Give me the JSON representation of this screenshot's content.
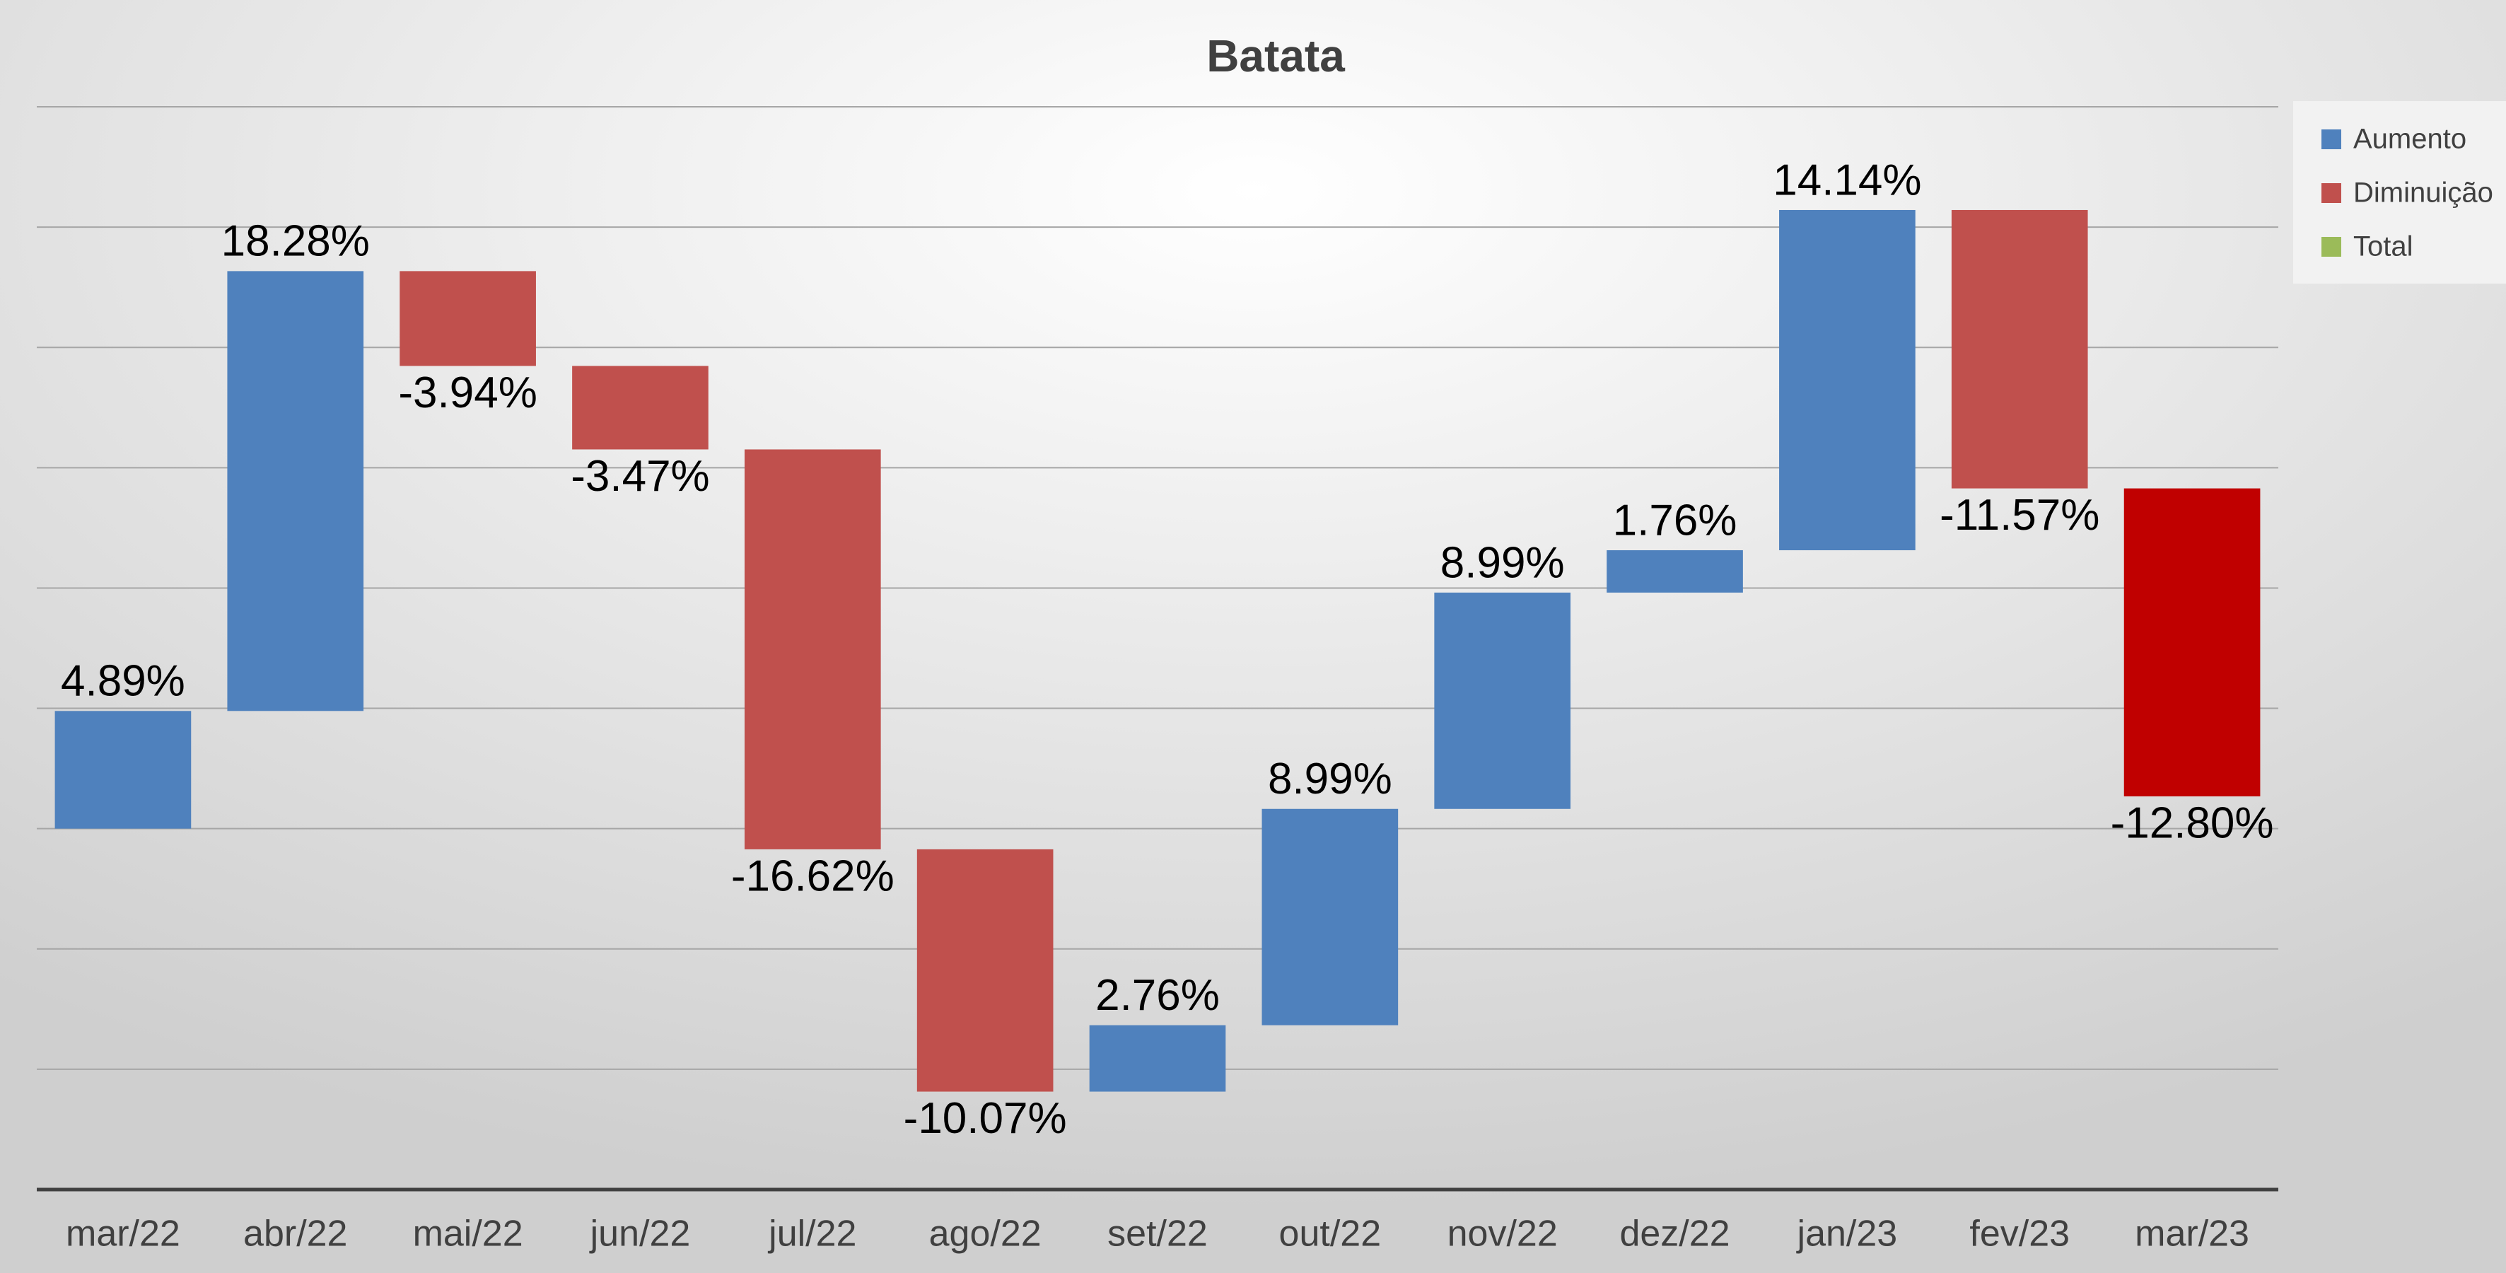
{
  "chart_data": {
    "type": "waterfall",
    "title": "Batata",
    "categories": [
      "mar/22",
      "abr/22",
      "mai/22",
      "jun/22",
      "jul/22",
      "ago/22",
      "set/22",
      "out/22",
      "nov/22",
      "dez/22",
      "jan/23",
      "fev/23",
      "mar/23"
    ],
    "values": [
      4.89,
      18.28,
      -3.94,
      -3.47,
      -16.62,
      -10.07,
      2.76,
      8.99,
      8.99,
      1.76,
      14.14,
      -11.57,
      -12.8
    ],
    "value_labels": [
      "4.89%",
      "18.28%",
      "-3.94%",
      "-3.47%",
      "-16.62%",
      "-10.07%",
      "2.76%",
      "8.99%",
      "8.99%",
      "1.76%",
      "14.14%",
      "-11.57%",
      "-12.80%"
    ],
    "colors": [
      "#4f81bd",
      "#4f81bd",
      "#c0504d",
      "#c0504d",
      "#c0504d",
      "#c0504d",
      "#4f81bd",
      "#4f81bd",
      "#4f81bd",
      "#4f81bd",
      "#4f81bd",
      "#c0504d",
      "#c00000"
    ],
    "legend": [
      {
        "name": "Aumento",
        "color": "#4f81bd"
      },
      {
        "name": "Diminuição",
        "color": "#c0504d"
      },
      {
        "name": "Total",
        "color": "#9bbb59"
      }
    ],
    "ylim": [
      -15,
      30
    ],
    "yticks": [
      -10,
      -5,
      0,
      5,
      10,
      15,
      20,
      25,
      30
    ],
    "grid": true
  }
}
